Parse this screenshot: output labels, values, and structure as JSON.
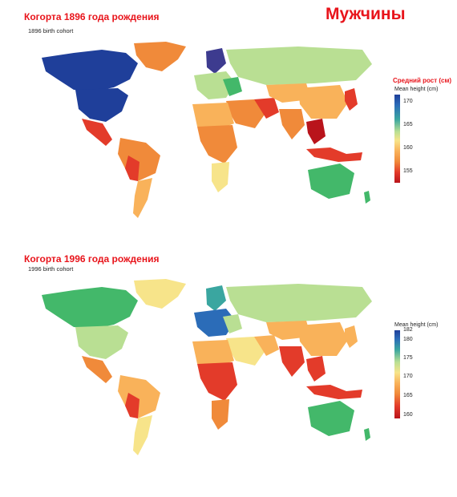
{
  "header": {
    "title": "Мужчины"
  },
  "map1": {
    "title": "Когорта 1896 года рождения",
    "subtitle": "1896 birth cohort",
    "legend": {
      "title_ru": "Средний рост (см)",
      "title_en": "Mean height (cm)",
      "ticks": [
        "170",
        "165",
        "160",
        "155"
      ]
    }
  },
  "map2": {
    "title": "Когорта 1996 года рождения",
    "subtitle": "1996 birth cohort",
    "legend": {
      "title_en": "Mean height (cm)",
      "ticks": [
        "182",
        "180",
        "175",
        "170",
        "165",
        "160"
      ]
    }
  },
  "colors": {
    "title_red": "#e8141b",
    "dark_blue": "#1f3f9a",
    "blue": "#2b6cb8",
    "teal": "#3aa6a0",
    "green": "#43b86a",
    "light_green": "#b9df93",
    "yellow": "#f7e48a",
    "orange_light": "#f9b25a",
    "orange": "#f08a3a",
    "red": "#e33b2a",
    "dark_red": "#b9141b"
  }
}
